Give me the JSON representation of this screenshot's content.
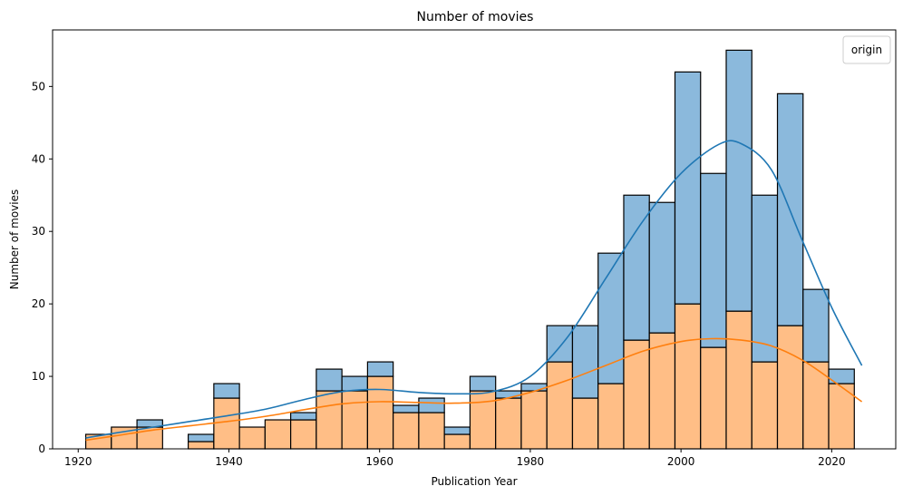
{
  "chart_data": {
    "type": "bar",
    "stacked": true,
    "title": "Number of movies",
    "xlabel": "Publication Year",
    "ylabel": "Number of movies",
    "xlim": [
      1916.6,
      1028.5
    ],
    "ylim": [
      0,
      57.8
    ],
    "xticks": [
      1920,
      1940,
      1960,
      1980,
      2000,
      2020
    ],
    "yticks": [
      0,
      10,
      20,
      30,
      40,
      50
    ],
    "legend": {
      "title": "origin",
      "placement": "top-right"
    },
    "bin_start": 1921.0,
    "bin_width": 3.4,
    "series": [
      {
        "color": "#ffbe86",
        "edge": "#000000",
        "values": [
          2,
          3,
          3,
          0,
          1,
          7,
          3,
          4,
          4,
          8,
          8,
          10,
          5,
          5,
          2,
          8,
          7,
          8,
          12,
          7,
          9,
          15,
          16,
          20,
          14,
          19,
          12,
          17,
          12,
          9
        ]
      },
      {
        "color": "#8bb9dc",
        "edge": "#000000",
        "values": [
          0,
          0,
          1,
          0,
          1,
          2,
          0,
          0,
          1,
          3,
          2,
          2,
          1,
          2,
          1,
          2,
          1,
          1,
          5,
          10,
          18,
          20,
          18,
          32,
          24,
          36,
          23,
          32,
          10,
          2
        ]
      }
    ],
    "kde": [
      {
        "color": "#1f77b4",
        "points": [
          [
            1921,
            1.5
          ],
          [
            1925,
            2.2
          ],
          [
            1930,
            3.0
          ],
          [
            1935,
            3.8
          ],
          [
            1940,
            4.6
          ],
          [
            1945,
            5.5
          ],
          [
            1950,
            6.8
          ],
          [
            1955,
            7.9
          ],
          [
            1960,
            8.2
          ],
          [
            1965,
            7.8
          ],
          [
            1970,
            7.6
          ],
          [
            1975,
            7.9
          ],
          [
            1980,
            10.0
          ],
          [
            1985,
            15.5
          ],
          [
            1990,
            23.5
          ],
          [
            1995,
            31.5
          ],
          [
            2000,
            38.0
          ],
          [
            2005,
            42.0
          ],
          [
            2008,
            42.1
          ],
          [
            2012,
            38.5
          ],
          [
            2016,
            29.0
          ],
          [
            2020,
            19.5
          ],
          [
            2024,
            11.5
          ]
        ]
      },
      {
        "color": "#ff7f0e",
        "points": [
          [
            1921,
            1.2
          ],
          [
            1925,
            1.8
          ],
          [
            1930,
            2.6
          ],
          [
            1935,
            3.2
          ],
          [
            1940,
            3.8
          ],
          [
            1945,
            4.5
          ],
          [
            1950,
            5.4
          ],
          [
            1955,
            6.2
          ],
          [
            1960,
            6.5
          ],
          [
            1965,
            6.4
          ],
          [
            1970,
            6.3
          ],
          [
            1975,
            6.6
          ],
          [
            1980,
            7.8
          ],
          [
            1985,
            9.5
          ],
          [
            1990,
            11.5
          ],
          [
            1995,
            13.5
          ],
          [
            2000,
            14.8
          ],
          [
            2004,
            15.2
          ],
          [
            2008,
            15.0
          ],
          [
            2012,
            14.2
          ],
          [
            2016,
            12.3
          ],
          [
            2020,
            9.5
          ],
          [
            2024,
            6.5
          ]
        ]
      }
    ]
  }
}
